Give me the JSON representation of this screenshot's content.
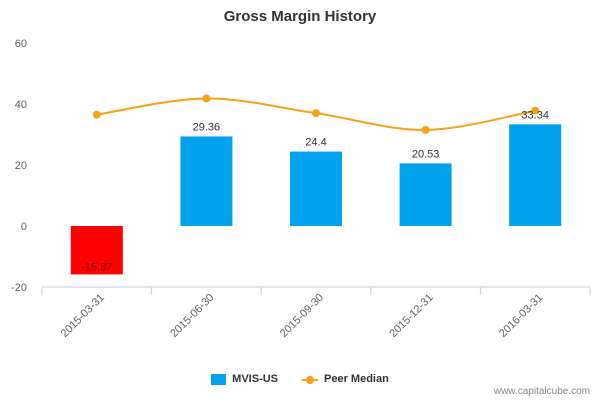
{
  "chart_data": {
    "type": "bar",
    "title": "Gross Margin History",
    "categories": [
      "2015-03-31",
      "2015-06-30",
      "2015-09-30",
      "2015-12-31",
      "2016-03-31"
    ],
    "series": [
      {
        "name": "MVIS-US",
        "kind": "bar",
        "values": [
          -15.87,
          29.36,
          24.4,
          20.53,
          33.34
        ],
        "labels": [
          "-15.87",
          "29.36",
          "24.4",
          "20.53",
          "33.34"
        ],
        "color": "#00a2ed",
        "negative_color": "#ff0000"
      },
      {
        "name": "Peer Median",
        "kind": "line",
        "values": [
          36.5,
          41.8,
          37.0,
          31.5,
          37.8
        ],
        "color": "#f7a11a"
      }
    ],
    "ylim": [
      -20,
      60
    ],
    "yticks": [
      -20,
      0,
      20,
      40,
      60
    ],
    "ytick_labels": [
      "-20",
      "0",
      "20",
      "40",
      "60"
    ],
    "grid": false,
    "legend": "bottom-center"
  },
  "credit": "www.capitalcube.com"
}
